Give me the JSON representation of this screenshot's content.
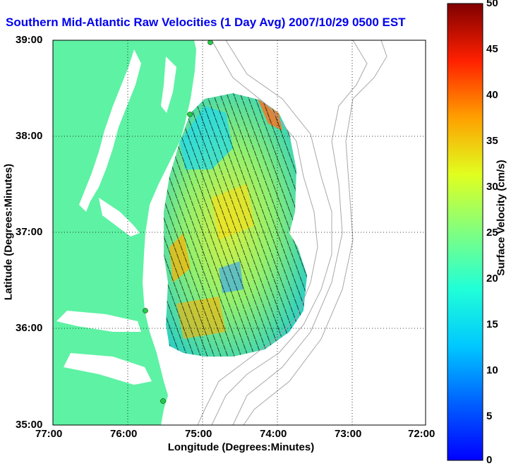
{
  "title": "Southern Mid-Atlantic Raw Velocities (1 Day Avg) 2007/10/29 0500 EST",
  "x_axis": {
    "label": "Longitude (Degrees:Minutes)",
    "ticks": [
      "77:00",
      "76:00",
      "75:00",
      "74:00",
      "73:00",
      "72:00"
    ]
  },
  "y_axis": {
    "label": "Latitude (Degrees:Minutes)",
    "ticks": [
      "39:00",
      "38:00",
      "37:00",
      "36:00",
      "35:00"
    ]
  },
  "colorbar": {
    "label": "Surface Velocity (cm/s)",
    "ticks": [
      "50",
      "45",
      "40",
      "35",
      "30",
      "25",
      "20",
      "15",
      "10",
      "5",
      "0"
    ],
    "min": 0,
    "max": 50
  },
  "colors": {
    "land": "#5ef2a4",
    "ocean": "#ffffff",
    "arrows": "#000000",
    "title": "#0000ee",
    "stations": "#22cc44"
  },
  "map_extent": {
    "lon": [
      -77,
      -72
    ],
    "lat": [
      35,
      39
    ]
  }
}
